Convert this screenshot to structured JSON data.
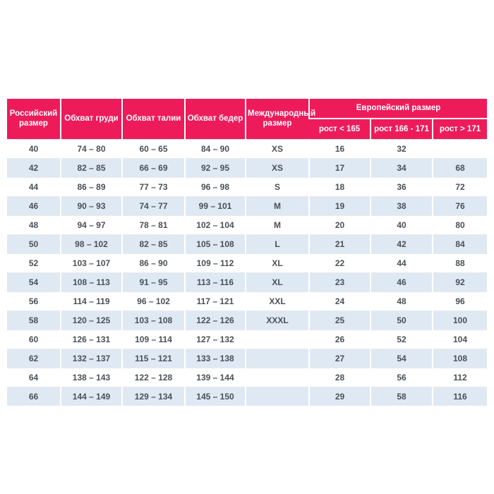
{
  "colors": {
    "header_bg": "#EE1B5B",
    "row_alt_bg": "#DFE9F4",
    "body_text": "#4A5056",
    "row_divider": "#E9E9E9"
  },
  "chart_data": {
    "type": "table",
    "title": "",
    "header": {
      "russian_size": "Российский размер",
      "chest": "Обхват груди",
      "waist": "Обхват талии",
      "hips": "Обхват бедер",
      "international": "Международный размер",
      "european_group": "Европейский размер",
      "height_cols": [
        "рост < 165",
        "рост 166 - 171",
        "рост > 171"
      ]
    },
    "rows": [
      [
        "40",
        "74 – 80",
        "60 – 65",
        "84 – 90",
        "XS",
        "16",
        "32",
        ""
      ],
      [
        "42",
        "82 – 85",
        "66 – 69",
        "92 – 95",
        "XS",
        "17",
        "34",
        "68"
      ],
      [
        "44",
        "86 – 89",
        "77 – 73",
        "96 – 98",
        "S",
        "18",
        "36",
        "72"
      ],
      [
        "46",
        "90 – 93",
        "74 – 77",
        "99 – 101",
        "M",
        "19",
        "38",
        "76"
      ],
      [
        "48",
        "94 – 97",
        "78 – 81",
        "102 – 104",
        "M",
        "20",
        "40",
        "80"
      ],
      [
        "50",
        "98 – 102",
        "82 – 85",
        "105 – 108",
        "L",
        "21",
        "42",
        "84"
      ],
      [
        "52",
        "103 – 107",
        "86 – 90",
        "109 – 112",
        "XL",
        "22",
        "44",
        "88"
      ],
      [
        "54",
        "108 – 113",
        "91 – 95",
        "113 – 116",
        "XL",
        "23",
        "46",
        "92"
      ],
      [
        "56",
        "114 – 119",
        "96 – 102",
        "117 – 121",
        "XXL",
        "24",
        "48",
        "96"
      ],
      [
        "58",
        "120 – 125",
        "103 – 108",
        "122 – 126",
        "XXXL",
        "25",
        "50",
        "100"
      ],
      [
        "60",
        "126 – 131",
        "109 – 114",
        "127 – 132",
        "",
        "26",
        "52",
        "104"
      ],
      [
        "62",
        "132 – 137",
        "115 – 121",
        "133 – 138",
        "",
        "27",
        "54",
        "108"
      ],
      [
        "64",
        "138 – 143",
        "122 – 128",
        "139 – 144",
        "",
        "28",
        "56",
        "112"
      ],
      [
        "66",
        "144 – 149",
        "129 – 134",
        "145 – 150",
        "",
        "29",
        "58",
        "116"
      ]
    ]
  }
}
